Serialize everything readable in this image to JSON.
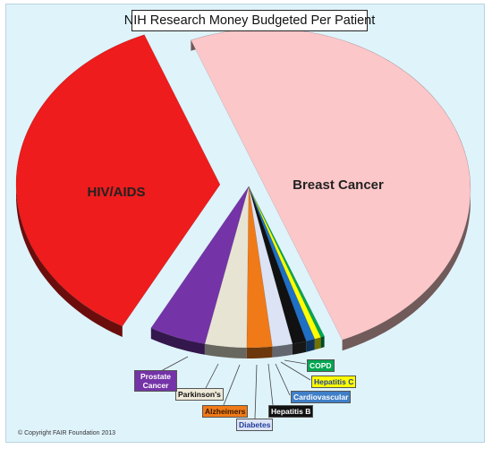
{
  "chart_data": {
    "type": "pie",
    "title": "NIH Research Money Budgeted Per Patient",
    "slices": [
      {
        "label": "Breast Cancer",
        "value": 50.0,
        "color": "#fcc7c9"
      },
      {
        "label": "COPD",
        "value": 0.3,
        "color": "#00a651"
      },
      {
        "label": "Hepatitis C",
        "value": 0.5,
        "color": "#ffff00"
      },
      {
        "label": "Cardiovascular",
        "value": 0.7,
        "color": "#1f6fc5"
      },
      {
        "label": "Hepatitis B",
        "value": 1.1,
        "color": "#111111"
      },
      {
        "label": "Diabetes",
        "value": 1.6,
        "color": "#dce3f5"
      },
      {
        "label": "Alzheimers",
        "value": 2.0,
        "color": "#f07a18"
      },
      {
        "label": "Parkinson's",
        "value": 3.3,
        "color": "#e8e4d4"
      },
      {
        "label": "Prostate Cancer",
        "value": 4.5,
        "color": "#7434a8"
      },
      {
        "label": "HIV/AIDS",
        "value": 36.0,
        "color": "#ee1c1c"
      }
    ]
  },
  "copyright": "© Copyright FAIR Foundation 2013",
  "colors": {
    "background": "#dff3fb",
    "border": "#b8d4de"
  }
}
